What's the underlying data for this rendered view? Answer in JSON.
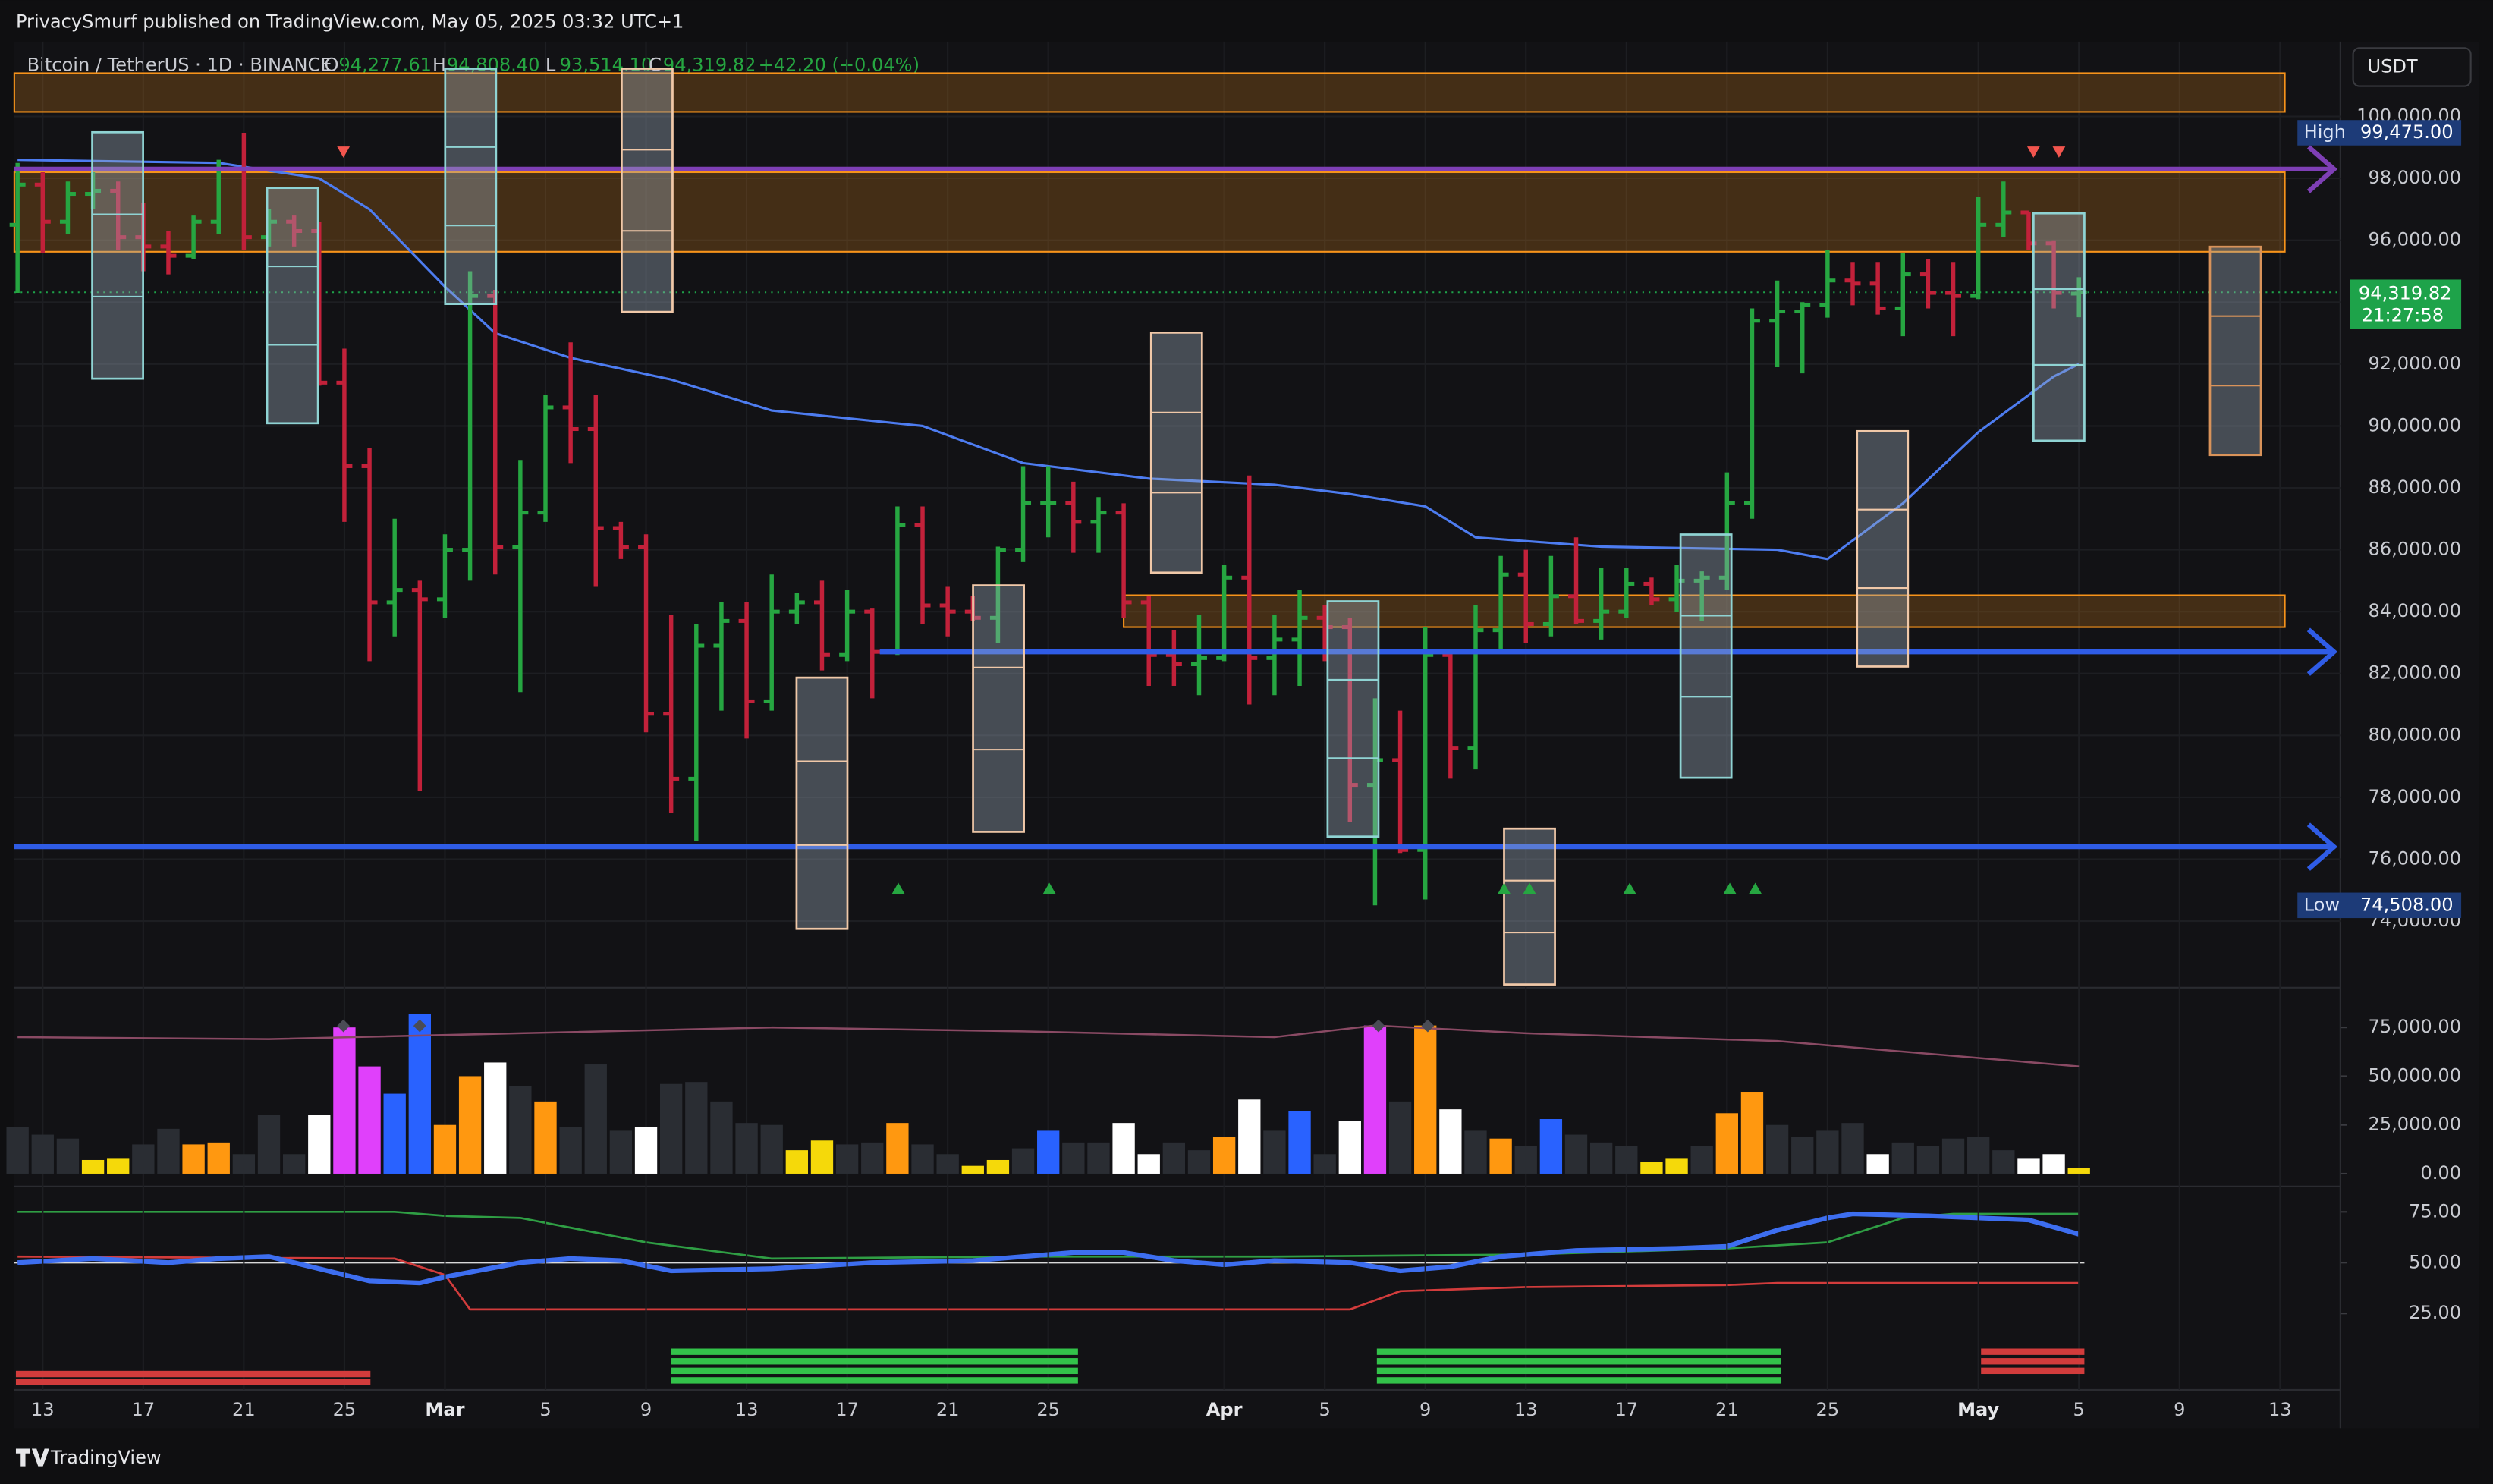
{
  "header": {
    "published": "PrivacySmurf published on TradingView.com, May 05, 2025 03:32 UTC+1",
    "symbol": "Bitcoin / TetherUS · 1D · BINANCE",
    "ohlc": [
      {
        "key": "O",
        "value": "94,277.61"
      },
      {
        "key": "H",
        "value": "94,808.40"
      },
      {
        "key": "L",
        "value": "93,514.10"
      },
      {
        "key": "C",
        "value": "94,319.82"
      }
    ],
    "change": "+42.20 (+0.04%)",
    "brand": "TradingView"
  },
  "chart_data": [
    {
      "type": "candlestick",
      "currency": "USDT",
      "up_color": "#26a641",
      "down_color": "#c2213a",
      "grid": true,
      "xlim": [
        -0.13,
        92.4
      ],
      "ylim": [
        71900,
        102420
      ],
      "yticks": [
        {
          "value": 74000,
          "label": "74,000.00"
        },
        {
          "value": 76000,
          "label": "76,000.00"
        },
        {
          "value": 78000,
          "label": "78,000.00"
        },
        {
          "value": 80000,
          "label": "80,000.00"
        },
        {
          "value": 82000,
          "label": "82,000.00"
        },
        {
          "value": 84000,
          "label": "84,000.00"
        },
        {
          "value": 86000,
          "label": "86,000.00"
        },
        {
          "value": 88000,
          "label": "88,000.00"
        },
        {
          "value": 90000,
          "label": "90,000.00"
        },
        {
          "value": 92000,
          "label": "92,000.00"
        },
        {
          "value": 94000,
          "label": "94,000.00"
        },
        {
          "value": 96000,
          "label": "96,000.00"
        },
        {
          "value": 98000,
          "label": "98,000.00"
        },
        {
          "value": 100000,
          "label": "100,000.00"
        }
      ],
      "x": [
        0,
        1,
        2,
        3,
        4,
        5,
        6,
        7,
        8,
        9,
        10,
        11,
        12,
        13,
        14,
        15,
        16,
        17,
        18,
        19,
        20,
        21,
        22,
        23,
        24,
        25,
        26,
        27,
        28,
        29,
        30,
        31,
        32,
        33,
        34,
        35,
        36,
        37,
        38,
        39,
        40,
        41,
        42,
        43,
        44,
        45,
        46,
        47,
        48,
        49,
        50,
        51,
        52,
        53,
        54,
        55,
        56,
        57,
        58,
        59,
        60,
        61,
        62,
        63,
        64,
        65,
        66,
        67,
        68,
        69,
        70,
        71,
        72,
        73,
        74,
        75,
        76,
        77,
        78,
        79,
        80,
        81,
        82
      ],
      "open": [
        96500,
        97800,
        96600,
        97500,
        97600,
        96100,
        95800,
        95500,
        96600,
        98300,
        96100,
        96600,
        96300,
        91400,
        88700,
        84300,
        84700,
        84400,
        86000,
        94200,
        86100,
        87200,
        90600,
        89900,
        86700,
        86100,
        80700,
        78600,
        82900,
        83700,
        81100,
        84000,
        84300,
        82600,
        84000,
        82700,
        86800,
        84200,
        84000,
        83800,
        86000,
        87500,
        87500,
        86900,
        87200,
        84300,
        82600,
        82300,
        82500,
        85100,
        82500,
        83100,
        83800,
        83500,
        78400,
        79200,
        76300,
        82600,
        79600,
        83400,
        85200,
        83600,
        84500,
        83700,
        84000,
        84900,
        84400,
        85000,
        85100,
        87500,
        93400,
        93700,
        93900,
        94700,
        94600,
        93800,
        94900,
        94300,
        94200,
        96500,
        96900,
        95900,
        94277.61
      ],
      "high": [
        98500,
        98200,
        97900,
        98200,
        97900,
        97200,
        96300,
        96800,
        98600,
        99475,
        97000,
        96800,
        96600,
        92500,
        89300,
        87000,
        85000,
        86500,
        95000,
        94400,
        88900,
        91000,
        92700,
        91000,
        86900,
        86500,
        83900,
        83600,
        84300,
        84300,
        85200,
        84600,
        85000,
        84700,
        84100,
        87400,
        87400,
        84800,
        84500,
        86100,
        88700,
        88700,
        88200,
        87700,
        87500,
        84500,
        83400,
        83900,
        85500,
        88400,
        83900,
        84700,
        84200,
        83800,
        81200,
        80800,
        83500,
        82700,
        84200,
        85800,
        86000,
        85800,
        86400,
        85400,
        85400,
        85100,
        85500,
        85300,
        88500,
        93800,
        94700,
        94000,
        95700,
        95300,
        95300,
        95600,
        95400,
        95300,
        97400,
        97900,
        96900,
        96000,
        94808.4
      ],
      "low": [
        94300,
        95600,
        96200,
        97000,
        95700,
        95000,
        94900,
        95400,
        96200,
        95700,
        95800,
        95800,
        91300,
        86900,
        82400,
        83200,
        78200,
        83800,
        85000,
        85200,
        81400,
        86900,
        88800,
        84800,
        85700,
        80100,
        77500,
        76600,
        80800,
        79900,
        80800,
        83600,
        82100,
        82400,
        81200,
        82600,
        83600,
        83200,
        83700,
        83000,
        85600,
        86400,
        85900,
        85900,
        83800,
        81600,
        81600,
        81300,
        82400,
        81000,
        81300,
        81600,
        82400,
        77200,
        74508,
        76200,
        74700,
        78600,
        78900,
        82700,
        83000,
        83200,
        83600,
        83100,
        83800,
        84200,
        84000,
        83700,
        84700,
        87000,
        91900,
        91700,
        93500,
        93900,
        93600,
        92900,
        93800,
        92900,
        94100,
        96100,
        95700,
        93800,
        93514
      ],
      "close": [
        97800,
        96600,
        97500,
        97600,
        96100,
        95800,
        95500,
        96600,
        98300,
        96100,
        96600,
        96300,
        91400,
        88700,
        84300,
        84700,
        84400,
        86000,
        94200,
        86100,
        87200,
        90600,
        89900,
        86700,
        86100,
        80700,
        78600,
        82900,
        83700,
        81100,
        84000,
        84300,
        82600,
        84000,
        82700,
        86800,
        84200,
        84000,
        83800,
        86000,
        87500,
        87500,
        86900,
        87200,
        84300,
        82600,
        82300,
        82500,
        85100,
        82500,
        83100,
        83800,
        83500,
        78400,
        79200,
        76300,
        82600,
        79600,
        83400,
        85200,
        83600,
        84500,
        83700,
        84000,
        84900,
        84400,
        85000,
        85100,
        87500,
        93400,
        93700,
        93900,
        94700,
        94600,
        93800,
        94900,
        94300,
        94200,
        96500,
        96900,
        95900,
        94300,
        94319.82
      ],
      "ma": {
        "color": "#4d7cf0",
        "x": [
          0,
          8,
          12,
          14,
          17,
          19,
          22,
          26,
          30,
          36,
          40,
          45,
          50,
          53,
          56,
          58,
          63,
          70,
          72,
          75,
          78,
          81,
          82
        ],
        "values": [
          98600,
          98500,
          98000,
          97000,
          94500,
          93000,
          92200,
          91500,
          90500,
          90000,
          88800,
          88300,
          88100,
          87800,
          87400,
          86400,
          86100,
          86000,
          85700,
          87500,
          89800,
          91600,
          92000
        ]
      },
      "zones": [
        {
          "from": 100150,
          "to": 101400,
          "x0": -0.13,
          "x1": 90.19,
          "color": "#f7931a"
        },
        {
          "from": 95630,
          "to": 98200,
          "x0": -0.13,
          "x1": 90.19,
          "color": "#f7931a"
        },
        {
          "from": 83500,
          "to": 84530,
          "x0": 44,
          "x1": 90.19,
          "color": "#f7931a"
        }
      ],
      "hlines": [
        {
          "value": 98300,
          "x0": -0.13,
          "color": "#7e3fb5"
        },
        {
          "value": 82700,
          "x0": 34.3,
          "color": "#2f5ce6"
        },
        {
          "value": 76400,
          "x0": -0.13,
          "color": "#2f5ce6"
        }
      ],
      "high_marker": {
        "text": "High",
        "value": 99475,
        "label": "99,475.00"
      },
      "low_marker": {
        "text": "Low",
        "value": 74508,
        "label": "74,508.00"
      },
      "last": {
        "value": 94319.82,
        "label": "94,319.82",
        "countdown": "21:27:58",
        "color": "#1ea34a"
      }
    },
    {
      "type": "bar",
      "xlim": [
        -0.13,
        92.4
      ],
      "ylim": [
        0,
        94000
      ],
      "yticks": [
        {
          "value": 0,
          "label": "0.00"
        },
        {
          "value": 25000,
          "label": "25,000.00"
        },
        {
          "value": 50000,
          "label": "50,000.00"
        },
        {
          "value": 75000,
          "label": "75,000.00"
        }
      ],
      "values": [
        24000,
        20000,
        18000,
        7000,
        8000,
        15000,
        23000,
        15000,
        16000,
        10000,
        30000,
        10000,
        30000,
        75000,
        55000,
        41000,
        82000,
        25000,
        50000,
        57000,
        45000,
        37000,
        24000,
        56000,
        22000,
        24000,
        46000,
        47000,
        37000,
        26000,
        25000,
        12000,
        17000,
        15000,
        16000,
        26000,
        15000,
        10000,
        4000,
        7000,
        13000,
        22000,
        16000,
        16000,
        26000,
        10000,
        16000,
        12000,
        19000,
        38000,
        22000,
        32000,
        10000,
        27000,
        76000,
        37000,
        76000,
        33000,
        22000,
        18000,
        14000,
        28000,
        20000,
        16000,
        14000,
        6000,
        8000,
        14000,
        31000,
        42000,
        25000,
        19000,
        22000,
        26000,
        10000,
        16000,
        14000,
        18000,
        19000,
        12000,
        8000,
        10000,
        3000
      ],
      "colors": [
        "#2a2d33",
        "#2a2d33",
        "#2a2d33",
        "#f5d90a",
        "#f5d90a",
        "#2a2d33",
        "#2a2d33",
        "#ff9810",
        "#ff9810",
        "#2a2d33",
        "#2a2d33",
        "#2a2d33",
        "#ffffff",
        "#e040fb",
        "#e040fb",
        "#2962ff",
        "#2962ff",
        "#ff9810",
        "#ff9810",
        "#ffffff",
        "#2a2d33",
        "#ff9810",
        "#2a2d33",
        "#2a2d33",
        "#2a2d33",
        "#ffffff",
        "#2a2d33",
        "#2a2d33",
        "#2a2d33",
        "#2a2d33",
        "#2a2d33",
        "#f5d90a",
        "#f5d90a",
        "#2a2d33",
        "#2a2d33",
        "#ff9810",
        "#2a2d33",
        "#2a2d33",
        "#f5d90a",
        "#f5d90a",
        "#2a2d33",
        "#2962ff",
        "#2a2d33",
        "#2a2d33",
        "#ffffff",
        "#ffffff",
        "#2a2d33",
        "#2a2d33",
        "#ff9810",
        "#ffffff",
        "#2a2d33",
        "#2962ff",
        "#2a2d33",
        "#ffffff",
        "#e040fb",
        "#2a2d33",
        "#ff9810",
        "#ffffff",
        "#2a2d33",
        "#ff9810",
        "#2a2d33",
        "#2962ff",
        "#2a2d33",
        "#2a2d33",
        "#2a2d33",
        "#f5d90a",
        "#f5d90a",
        "#2a2d33",
        "#ff9810",
        "#ff9810",
        "#2a2d33",
        "#2a2d33",
        "#2a2d33",
        "#2a2d33",
        "#ffffff",
        "#2a2d33",
        "#2a2d33",
        "#2a2d33",
        "#2a2d33",
        "#2a2d33",
        "#ffffff",
        "#ffffff",
        "#f5d90a"
      ],
      "ma": {
        "color": "#8a4a64",
        "x": [
          0,
          10,
          20,
          30,
          40,
          50,
          54,
          60,
          70,
          82
        ],
        "values": [
          70000,
          69000,
          72000,
          75000,
          73000,
          70000,
          76000,
          72000,
          68000,
          55000
        ]
      }
    },
    {
      "type": "line",
      "xlim": [
        -0.13,
        92.4
      ],
      "ylim": [
        14,
        84.4
      ],
      "ref": 50,
      "yticks": [
        {
          "value": 25,
          "label": "25.00"
        },
        {
          "value": 50,
          "label": "50.00"
        },
        {
          "value": 75,
          "label": "75.00"
        }
      ],
      "xticks": [
        {
          "value": 1,
          "label": "13"
        },
        {
          "value": 5,
          "label": "17"
        },
        {
          "value": 9,
          "label": "21"
        },
        {
          "value": 13,
          "label": "25"
        },
        {
          "value": 17,
          "label": "Mar"
        },
        {
          "value": 21,
          "label": "5"
        },
        {
          "value": 25,
          "label": "9"
        },
        {
          "value": 29,
          "label": "13"
        },
        {
          "value": 33,
          "label": "17"
        },
        {
          "value": 37,
          "label": "21"
        },
        {
          "value": 41,
          "label": "25"
        },
        {
          "value": 48,
          "label": "Apr"
        },
        {
          "value": 52,
          "label": "5"
        },
        {
          "value": 56,
          "label": "9"
        },
        {
          "value": 60,
          "label": "13"
        },
        {
          "value": 64,
          "label": "17"
        },
        {
          "value": 68,
          "label": "21"
        },
        {
          "value": 72,
          "label": "25"
        },
        {
          "value": 78,
          "label": "May"
        },
        {
          "value": 82,
          "label": "5"
        },
        {
          "value": 86,
          "label": "9"
        },
        {
          "value": 90,
          "label": "13"
        }
      ],
      "series": [
        {
          "color": "#2f9e44",
          "x": [
            0,
            15,
            17,
            20,
            25,
            30,
            40,
            50,
            60,
            68,
            72,
            75,
            77,
            82
          ],
          "values": [
            75,
            75,
            73,
            72,
            60,
            52,
            53,
            53,
            54,
            57,
            60,
            72,
            74,
            74
          ]
        },
        {
          "color": "#d23c3c",
          "x": [
            0,
            15,
            17,
            18,
            53,
            55,
            60,
            68,
            70,
            82
          ],
          "values": [
            53,
            52,
            44,
            27,
            27,
            36,
            38,
            39,
            40,
            40
          ]
        },
        {
          "color": "#3d6ef0",
          "x": [
            0,
            3,
            6,
            8,
            10,
            12,
            14,
            16,
            17,
            20,
            22,
            24,
            26,
            30,
            34,
            38,
            42,
            44,
            46,
            48,
            50,
            53,
            55,
            57,
            59,
            62,
            66,
            68,
            70,
            72,
            73,
            76,
            80,
            82
          ],
          "values": [
            50,
            52,
            50,
            52,
            53,
            47,
            41,
            40,
            43,
            50,
            52,
            51,
            46,
            47,
            50,
            51,
            55,
            55,
            51,
            49,
            51,
            50,
            46,
            48,
            53,
            56,
            57,
            58,
            66,
            72,
            74,
            73,
            71,
            64
          ]
        }
      ]
    }
  ]
}
